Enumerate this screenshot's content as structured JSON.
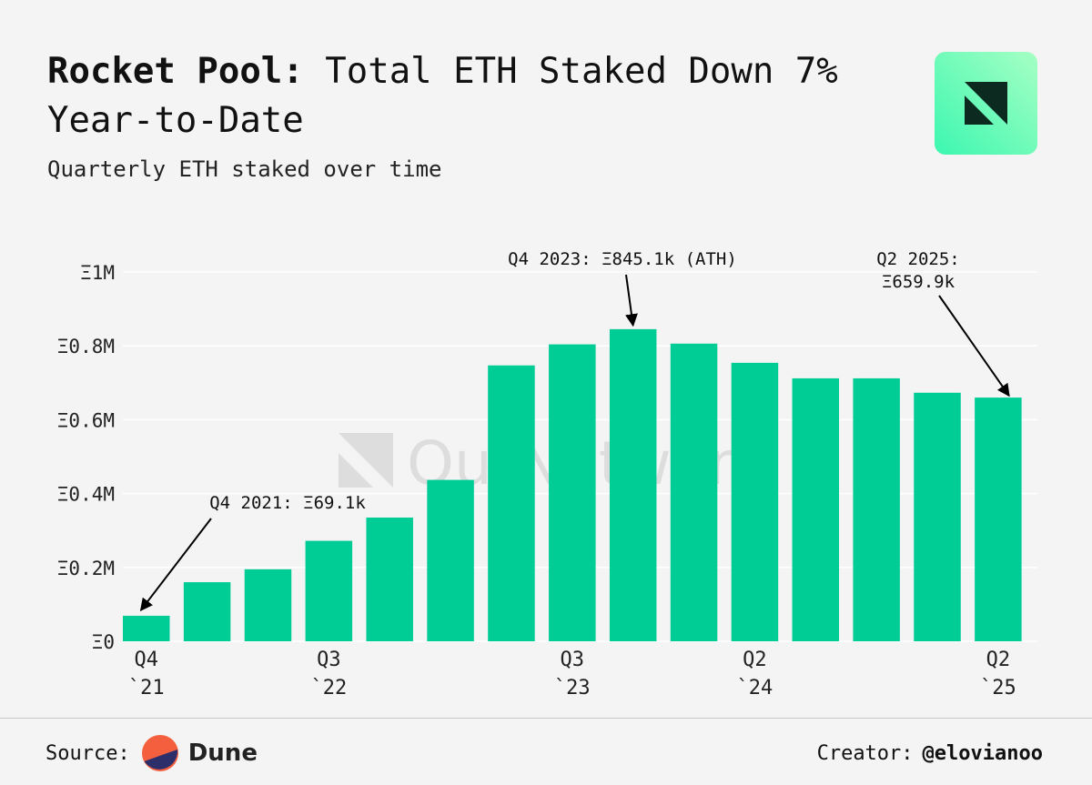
{
  "header": {
    "title_bold": "Rocket Pool:",
    "title_rest": "Total ETH Staked Down 7% Year-to-Date",
    "subtitle": "Quarterly ETH staked over time"
  },
  "watermark": {
    "text": "OurNetwork"
  },
  "chart_data": {
    "type": "bar",
    "title": "Quarterly ETH staked over time",
    "xlabel": "",
    "ylabel": "",
    "ylim": [
      0,
      1000000
    ],
    "bar_color": "#00cc96",
    "categories": [
      "Q4 2021",
      "Q1 2022",
      "Q2 2022",
      "Q3 2022",
      "Q4 2022",
      "Q1 2023",
      "Q2 2023",
      "Q3 2023",
      "Q4 2023",
      "Q1 2024",
      "Q2 2024",
      "Q3 2024",
      "Q4 2024",
      "Q1 2025",
      "Q2 2025"
    ],
    "values": [
      69100,
      160000,
      195000,
      272000,
      335000,
      437000,
      747000,
      804000,
      845100,
      806000,
      754000,
      712000,
      712000,
      673000,
      659900
    ],
    "y_ticks": [
      {
        "value": 0,
        "label": "Ξ0"
      },
      {
        "value": 200000,
        "label": "Ξ0.2M"
      },
      {
        "value": 400000,
        "label": "Ξ0.4M"
      },
      {
        "value": 600000,
        "label": "Ξ0.6M"
      },
      {
        "value": 800000,
        "label": "Ξ0.8M"
      },
      {
        "value": 1000000,
        "label": "Ξ1M"
      }
    ],
    "x_ticks": [
      {
        "index": 0,
        "line1": "Q4",
        "line2": "`21"
      },
      {
        "index": 3,
        "line1": "Q3",
        "line2": "`22"
      },
      {
        "index": 7,
        "line1": "Q3",
        "line2": "`23"
      },
      {
        "index": 10,
        "line1": "Q2",
        "line2": "`24"
      },
      {
        "index": 14,
        "line1": "Q2",
        "line2": "`25"
      }
    ],
    "annotations": [
      {
        "index": 0,
        "lines": [
          "Q4 2021: Ξ69.1k"
        ]
      },
      {
        "index": 8,
        "lines": [
          "Q4 2023: Ξ845.1k (ATH)"
        ]
      },
      {
        "index": 14,
        "lines": [
          "Q2 2025:",
          "Ξ659.9k"
        ]
      }
    ]
  },
  "footer": {
    "source_label": "Source:",
    "source_name": "Dune",
    "creator_label": "Creator:",
    "creator_handle": "@elovianoo"
  },
  "colors": {
    "background": "#f4f4f4",
    "bar": "#00cc96",
    "logo_gradient_start": "#3cf7b0",
    "logo_gradient_end": "#8fffbf",
    "dune_orange": "#f4603e",
    "dune_navy": "#2d2f6b"
  }
}
